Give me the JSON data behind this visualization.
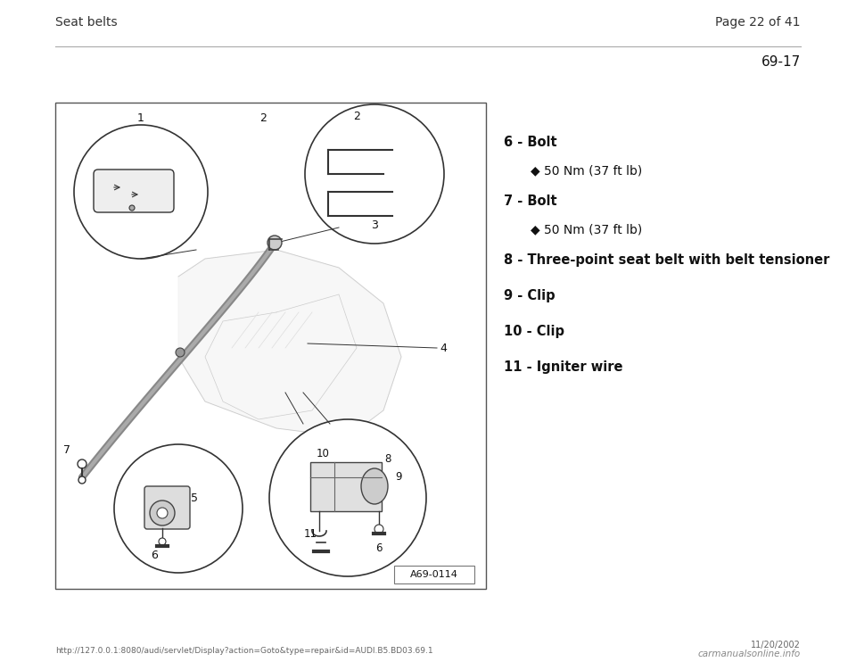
{
  "bg_color": "#ffffff",
  "header_left": "Seat belts",
  "header_right": "Page 22 of 41",
  "page_id": "69-17",
  "footer_url": "http://127.0.0.1:8080/audi/servlet/Display?action=Goto&type=repair&id=AUDI.B5.BD03.69.1",
  "footer_right": "11/20/2002",
  "footer_logo": "carmanualsonline.info",
  "items": [
    {
      "number": "6",
      "bold_text": "Bolt",
      "sub_items": [
        "50 Nm (37 ft lb)"
      ]
    },
    {
      "number": "7",
      "bold_text": "Bolt",
      "sub_items": [
        "50 Nm (37 ft lb)"
      ]
    },
    {
      "number": "8",
      "bold_text": "Three-point seat belt with belt tensioner",
      "sub_items": []
    },
    {
      "number": "9",
      "bold_text": "Clip",
      "sub_items": []
    },
    {
      "number": "10",
      "bold_text": "Clip",
      "sub_items": []
    },
    {
      "number": "11",
      "bold_text": "Igniter wire",
      "sub_items": []
    }
  ]
}
